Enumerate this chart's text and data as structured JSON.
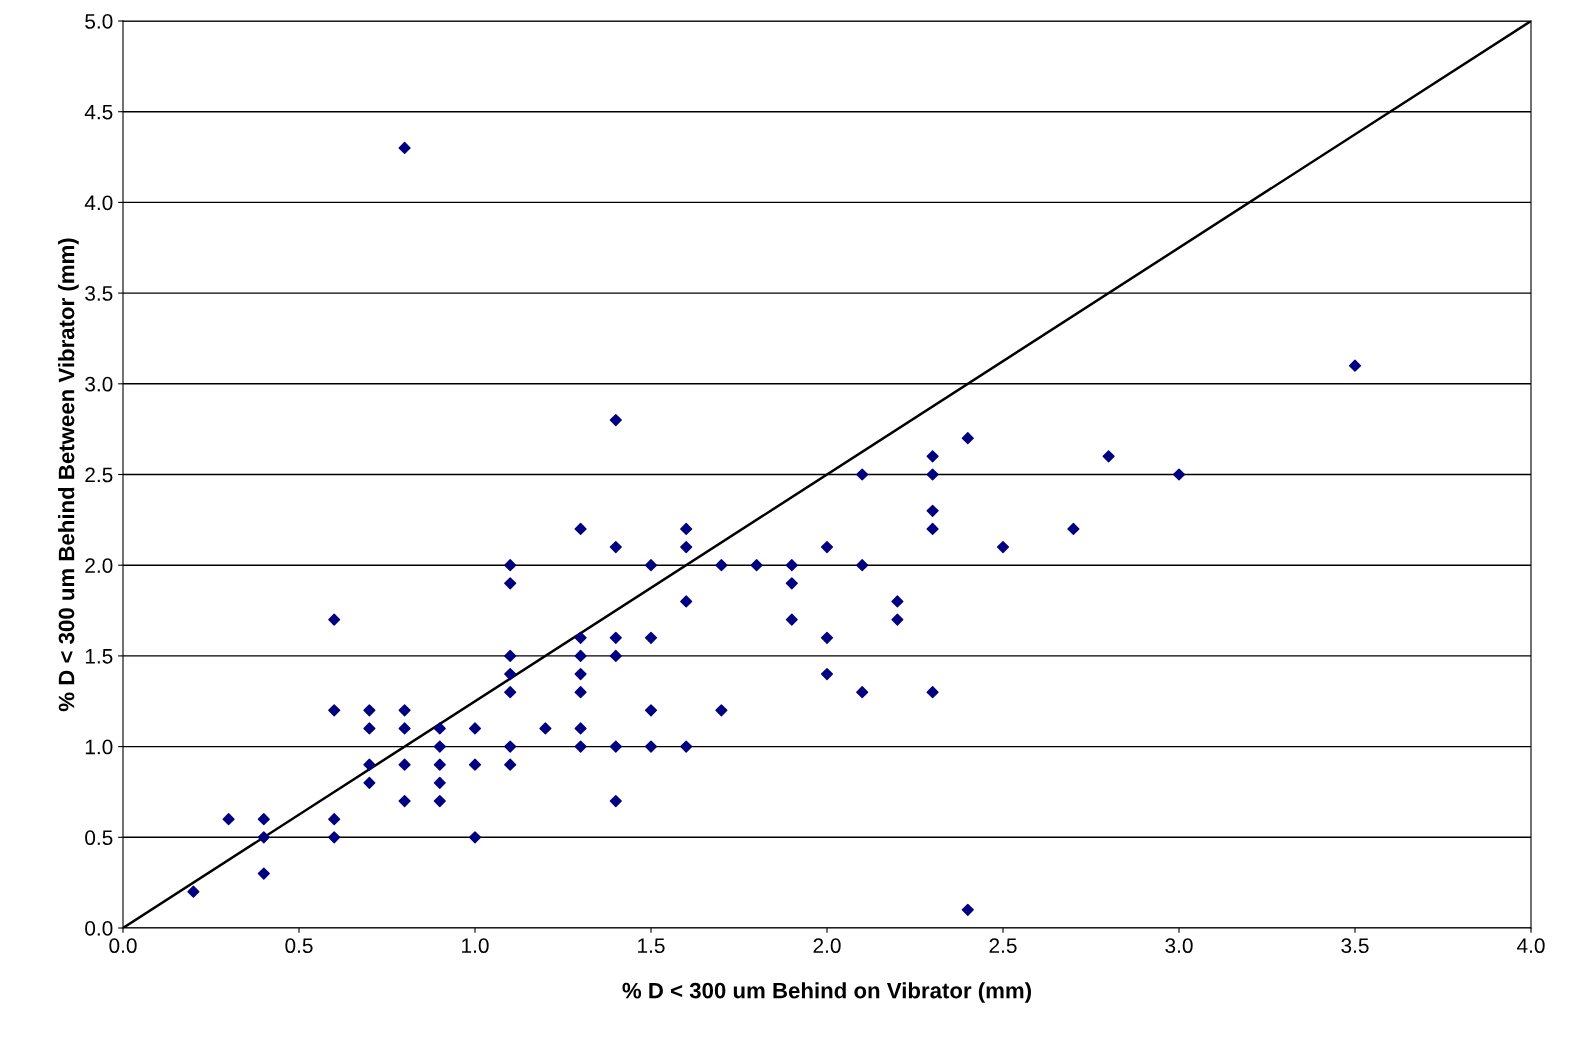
{
  "chart_data": {
    "type": "scatter",
    "xlabel": "% D < 300 um Behind on Vibrator (mm)",
    "ylabel": "% D < 300 um Behind Between Vibrator (mm)",
    "xlim": [
      0,
      4
    ],
    "ylim": [
      0,
      5
    ],
    "xticks": [
      {
        "value": 0,
        "label": "0.0"
      },
      {
        "value": 0.5,
        "label": "0.5"
      },
      {
        "value": 1,
        "label": "1.0"
      },
      {
        "value": 1.5,
        "label": "1.5"
      },
      {
        "value": 2,
        "label": "2.0"
      },
      {
        "value": 2.5,
        "label": "2.5"
      },
      {
        "value": 3,
        "label": "3.0"
      },
      {
        "value": 3.5,
        "label": "3.5"
      },
      {
        "value": 4,
        "label": "4.0"
      }
    ],
    "yticks": [
      {
        "value": 0,
        "label": "0.0"
      },
      {
        "value": 0.5,
        "label": "0.5"
      },
      {
        "value": 1,
        "label": "1.0"
      },
      {
        "value": 1.5,
        "label": "1.5"
      },
      {
        "value": 2,
        "label": "2.0"
      },
      {
        "value": 2.5,
        "label": "2.5"
      },
      {
        "value": 3,
        "label": "3.0"
      },
      {
        "value": 3.5,
        "label": "3.5"
      },
      {
        "value": 4,
        "label": "4.0"
      },
      {
        "value": 4.5,
        "label": "4.5"
      },
      {
        "value": 5,
        "label": "5.0"
      }
    ],
    "grid": "y",
    "legend": false,
    "marker": "diamond",
    "series": [
      {
        "color": "#000080",
        "x": [
          0.2,
          0.3,
          0.4,
          0.4,
          0.4,
          0.6,
          0.6,
          0.6,
          0.6,
          0.7,
          0.7,
          0.7,
          0.7,
          0.8,
          0.8,
          0.8,
          0.8,
          0.8,
          0.9,
          0.9,
          0.9,
          0.9,
          0.9,
          1.0,
          1.0,
          1.0,
          1.1,
          1.1,
          1.1,
          1.1,
          1.1,
          1.1,
          1.1,
          1.2,
          1.3,
          1.3,
          1.3,
          1.3,
          1.3,
          1.3,
          1.3,
          1.4,
          1.4,
          1.4,
          1.4,
          1.4,
          1.4,
          1.5,
          1.5,
          1.5,
          1.5,
          1.6,
          1.6,
          1.6,
          1.6,
          1.7,
          1.7,
          1.8,
          1.9,
          1.9,
          1.9,
          2.0,
          2.0,
          2.0,
          2.1,
          2.1,
          2.1,
          2.2,
          2.2,
          2.3,
          2.3,
          2.3,
          2.3,
          2.3,
          2.4,
          2.4,
          2.5,
          2.7,
          2.8,
          3.0,
          3.5
        ],
        "values": [
          0.2,
          0.6,
          0.6,
          0.5,
          0.3,
          1.7,
          1.2,
          0.6,
          0.5,
          1.2,
          1.1,
          0.9,
          0.8,
          4.3,
          1.2,
          1.1,
          0.9,
          0.7,
          1.1,
          1.0,
          0.9,
          0.8,
          0.7,
          1.1,
          0.9,
          0.5,
          2.0,
          1.9,
          1.5,
          1.4,
          1.3,
          1.0,
          0.9,
          1.1,
          2.2,
          1.6,
          1.5,
          1.4,
          1.3,
          1.1,
          1.0,
          2.8,
          2.1,
          1.6,
          1.5,
          1.0,
          0.7,
          2.0,
          1.6,
          1.2,
          1.0,
          2.2,
          2.1,
          1.8,
          1.0,
          2.0,
          1.2,
          2.0,
          2.0,
          1.9,
          1.7,
          2.1,
          1.6,
          1.4,
          2.5,
          2.0,
          1.3,
          1.8,
          1.7,
          2.6,
          2.5,
          2.3,
          2.2,
          1.3,
          2.7,
          0.1,
          2.1,
          2.2,
          2.6,
          2.5,
          3.1
        ]
      },
      {
        "type": "line",
        "marker": "none",
        "color": "#000000",
        "x": [
          0,
          4
        ],
        "values": [
          0,
          5
        ]
      }
    ]
  }
}
